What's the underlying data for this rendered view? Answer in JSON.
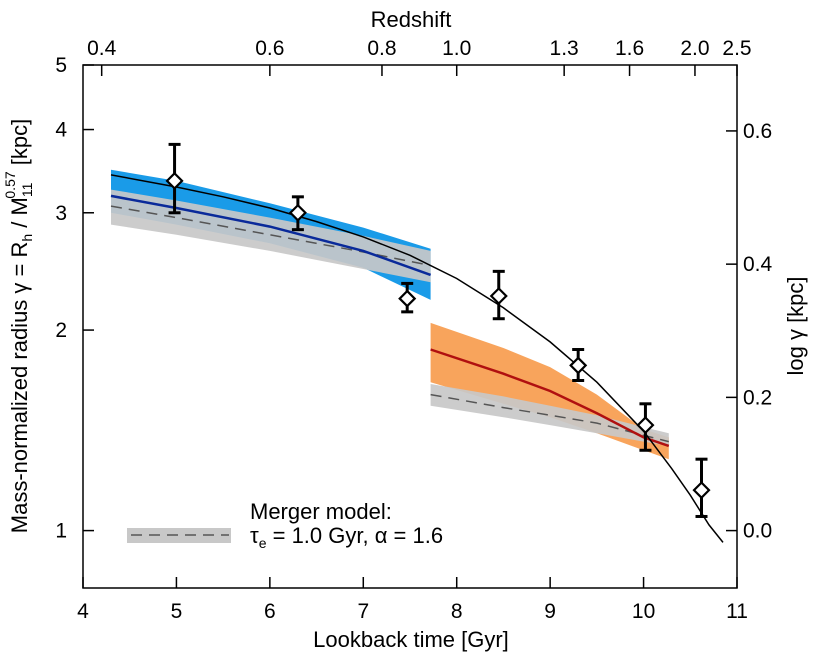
{
  "chart_data": {
    "type": "line",
    "x_axis": {
      "label": "Lookback time [Gyr]",
      "range": [
        4,
        11
      ],
      "ticks": [
        4,
        5,
        6,
        7,
        8,
        9,
        10,
        11
      ],
      "tick_labels": [
        "4",
        "5",
        "6",
        "7",
        "8",
        "9",
        "10",
        "11"
      ]
    },
    "top_axis": {
      "label": "Redshift",
      "tick_labels": [
        "0.4",
        "0.6",
        "0.8",
        "1.0",
        "1.3",
        "1.6",
        "2.0",
        "2.5"
      ],
      "tick_positions_gyr": [
        4.2,
        6.0,
        7.2,
        8.0,
        9.15,
        9.85,
        10.55,
        11.0
      ]
    },
    "y_axis": {
      "label_main": "Mass-normalized radius γ = R",
      "label_sub_h": "h",
      "label_mid": " / M",
      "label_sub_11": "11",
      "label_sup": "0.57",
      "label_end": " [kpc]",
      "scale": "log",
      "range": [
        0.82,
        5.0
      ],
      "ticks": [
        1,
        2,
        3,
        4,
        5
      ],
      "tick_labels": [
        "1",
        "2",
        "3",
        "4",
        "5"
      ]
    },
    "right_axis": {
      "label": "log γ [kpc]",
      "ticks": [
        0.0,
        0.2,
        0.4,
        0.6
      ],
      "tick_labels": [
        "0.0",
        "0.2",
        "0.4",
        "0.6"
      ]
    },
    "data_points": [
      {
        "x": 4.98,
        "y": 3.35,
        "ylo": 3.0,
        "yhi": 3.8
      },
      {
        "x": 6.3,
        "y": 3.0,
        "ylo": 2.83,
        "yhi": 3.17
      },
      {
        "x": 7.47,
        "y": 2.23,
        "ylo": 2.13,
        "yhi": 2.35
      },
      {
        "x": 8.45,
        "y": 2.25,
        "ylo": 2.08,
        "yhi": 2.45
      },
      {
        "x": 9.3,
        "y": 1.77,
        "ylo": 1.68,
        "yhi": 1.87
      },
      {
        "x": 10.02,
        "y": 1.44,
        "ylo": 1.32,
        "yhi": 1.55
      },
      {
        "x": 10.62,
        "y": 1.15,
        "ylo": 1.05,
        "yhi": 1.28
      }
    ],
    "fit_curve": {
      "x": [
        4.3,
        5.0,
        5.5,
        6.0,
        6.5,
        7.0,
        7.5,
        8.0,
        8.5,
        9.0,
        9.5,
        10.0,
        10.3,
        10.5,
        10.7,
        10.85
      ],
      "y": [
        3.42,
        3.28,
        3.17,
        3.05,
        2.91,
        2.76,
        2.59,
        2.39,
        2.16,
        1.92,
        1.67,
        1.41,
        1.24,
        1.13,
        1.02,
        0.96
      ]
    },
    "blue_band": {
      "x": [
        4.3,
        5.0,
        6.0,
        7.0,
        7.72
      ],
      "lower": [
        3.0,
        2.88,
        2.7,
        2.48,
        2.22
      ],
      "upper": [
        3.48,
        3.35,
        3.1,
        2.85,
        2.65
      ],
      "mid": [
        3.18,
        3.05,
        2.86,
        2.63,
        2.42
      ]
    },
    "orange_band": {
      "x": [
        7.72,
        8.5,
        9.0,
        9.5,
        10.0,
        10.27
      ],
      "lower": [
        1.67,
        1.55,
        1.48,
        1.4,
        1.32,
        1.28
      ],
      "upper": [
        2.05,
        1.88,
        1.76,
        1.6,
        1.42,
        1.38
      ],
      "mid": [
        1.87,
        1.72,
        1.62,
        1.5,
        1.38,
        1.34
      ]
    },
    "grey_band_low": {
      "x": [
        4.3,
        5.0,
        6.0,
        7.0,
        7.72
      ],
      "lower": [
        2.88,
        2.78,
        2.63,
        2.47,
        2.36
      ],
      "upper": [
        3.25,
        3.13,
        2.95,
        2.77,
        2.63
      ],
      "mid": [
        3.07,
        2.95,
        2.78,
        2.62,
        2.5
      ]
    },
    "grey_band_high": {
      "x": [
        7.72,
        8.5,
        9.0,
        9.5,
        10.0,
        10.27
      ],
      "lower": [
        1.54,
        1.48,
        1.44,
        1.4,
        1.36,
        1.34
      ],
      "upper": [
        1.66,
        1.59,
        1.54,
        1.49,
        1.43,
        1.4
      ],
      "mid": [
        1.6,
        1.53,
        1.49,
        1.45,
        1.39,
        1.36
      ]
    },
    "legend": {
      "title": "Merger model:",
      "entry": "τ",
      "entry_sub": "e",
      "entry_rest": " = 1.0 Gyr, α = 1.6",
      "placement": "bottom-left"
    },
    "colors": {
      "blue_band": "#1a9be8",
      "blue_line": "#0a2a9a",
      "orange_band": "#f8a45c",
      "red_line": "#b01010",
      "grey_band": "#c8c8c8",
      "grey_line": "#555555",
      "fit": "#000000",
      "points": "#000000"
    }
  }
}
